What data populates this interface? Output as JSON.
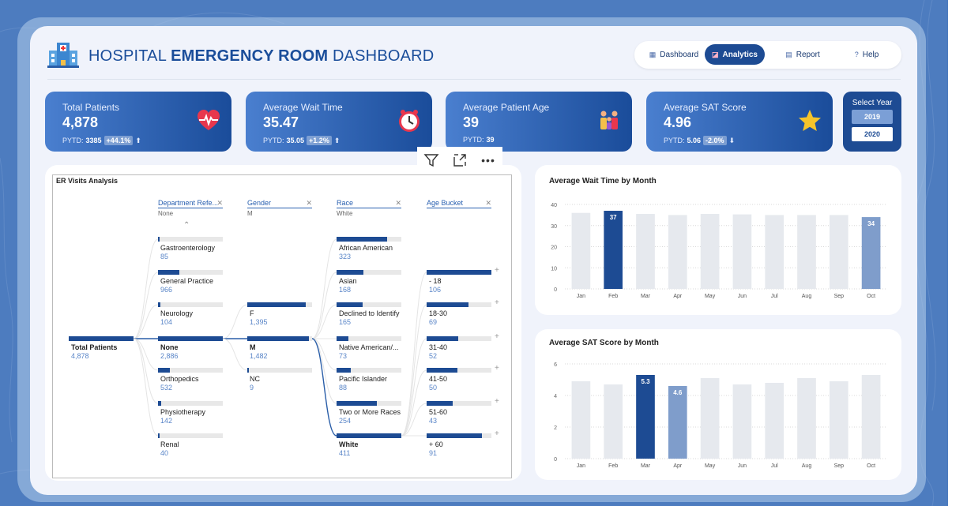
{
  "header": {
    "title_pre": "HOSPITAL",
    "title_bold": "EMERGENCY ROOM",
    "title_post": "DASHBOARD"
  },
  "nav": [
    {
      "label": "Dashboard",
      "icon": "dashboard-icon",
      "active": false
    },
    {
      "label": "Analytics",
      "icon": "analytics-icon",
      "active": true
    },
    {
      "label": "Report",
      "icon": "report-icon",
      "active": false
    },
    {
      "label": "Help",
      "icon": "help-icon",
      "active": false
    }
  ],
  "kpis": [
    {
      "label": "Total Patients",
      "value": "4,878",
      "pytd_label": "PYTD:",
      "pytd": "3385",
      "change": "+44.1%",
      "dir": "up",
      "icon": "heart-icon"
    },
    {
      "label": "Average Wait Time",
      "value": "35.47",
      "pytd_label": "PYTD:",
      "pytd": "35.05",
      "change": "+1.2%",
      "dir": "up",
      "icon": "clock-icon"
    },
    {
      "label": "Average Patient Age",
      "value": "39",
      "pytd_label": "PYTD:",
      "pytd": "39",
      "change": "",
      "dir": "",
      "icon": "family-icon"
    },
    {
      "label": "Average SAT Score",
      "value": "4.96",
      "pytd_label": "PYTD:",
      "pytd": "5.06",
      "change": "-2.0%",
      "dir": "down",
      "icon": "star-icon"
    }
  ],
  "year_select": {
    "label": "Select Year",
    "options": [
      "2019",
      "2020"
    ],
    "selected": "2020"
  },
  "decomp": {
    "title": "ER Visits Analysis",
    "root": {
      "label": "Total Patients",
      "value": "4,878"
    },
    "columns": [
      {
        "header": "Department Refe...",
        "sub": "None"
      },
      {
        "header": "Gender",
        "sub": "M"
      },
      {
        "header": "Race",
        "sub": "White"
      },
      {
        "header": "Age Bucket",
        "sub": ""
      }
    ],
    "departments": [
      {
        "label": "Gastroenterology",
        "value": "85",
        "n": 85
      },
      {
        "label": "General Practice",
        "value": "966",
        "n": 966
      },
      {
        "label": "Neurology",
        "value": "104",
        "n": 104
      },
      {
        "label": "None",
        "value": "2,886",
        "n": 2886,
        "selected": true
      },
      {
        "label": "Orthopedics",
        "value": "532",
        "n": 532
      },
      {
        "label": "Physiotherapy",
        "value": "142",
        "n": 142
      },
      {
        "label": "Renal",
        "value": "40",
        "n": 40
      }
    ],
    "genders": [
      {
        "label": "F",
        "value": "1,395",
        "n": 1395
      },
      {
        "label": "M",
        "value": "1,482",
        "n": 1482,
        "selected": true
      },
      {
        "label": "NC",
        "value": "9",
        "n": 9
      }
    ],
    "races": [
      {
        "label": "African American",
        "value": "323",
        "n": 323
      },
      {
        "label": "Asian",
        "value": "168",
        "n": 168
      },
      {
        "label": "Declined to Identify",
        "value": "165",
        "n": 165
      },
      {
        "label": "Native American/...",
        "value": "73",
        "n": 73
      },
      {
        "label": "Pacific Islander",
        "value": "88",
        "n": 88
      },
      {
        "label": "Two or More Races",
        "value": "254",
        "n": 254
      },
      {
        "label": "White",
        "value": "411",
        "n": 411,
        "selected": true
      }
    ],
    "ages": [
      {
        "label": "- 18",
        "value": "106",
        "n": 106
      },
      {
        "label": "18-30",
        "value": "69",
        "n": 69
      },
      {
        "label": "31-40",
        "value": "52",
        "n": 52
      },
      {
        "label": "41-50",
        "value": "50",
        "n": 50
      },
      {
        "label": "51-60",
        "value": "43",
        "n": 43
      },
      {
        "label": "+ 60",
        "value": "91",
        "n": 91
      }
    ]
  },
  "chart_data": [
    {
      "type": "bar",
      "title": "Average Wait Time by Month",
      "categories": [
        "Jan",
        "Feb",
        "Mar",
        "Apr",
        "May",
        "Jun",
        "Jul",
        "Aug",
        "Sep",
        "Oct"
      ],
      "values": [
        36,
        37,
        35.5,
        35,
        35.5,
        35.3,
        35,
        35,
        35,
        34
      ],
      "highlight": {
        "max_index": 1,
        "min_index": 9
      },
      "data_labels": {
        "1": "37",
        "9": "34"
      },
      "yticks": [
        0,
        10,
        20,
        30,
        40
      ],
      "ylim": [
        0,
        40
      ],
      "colors": {
        "bar": "#e6e9ee",
        "max": "#1d4b93",
        "min": "#7f9dcb"
      },
      "grid": true
    },
    {
      "type": "bar",
      "title": "Average SAT Score by Month",
      "categories": [
        "Jan",
        "Feb",
        "Mar",
        "Apr",
        "May",
        "Jun",
        "Jul",
        "Aug",
        "Sep",
        "Oct"
      ],
      "values": [
        4.9,
        4.7,
        5.3,
        4.6,
        5.1,
        4.7,
        4.8,
        5.1,
        4.9,
        5.3
      ],
      "highlight": {
        "max_index": 2,
        "min_index": 3
      },
      "data_labels": {
        "2": "5.3",
        "3": "4.6"
      },
      "yticks": [
        0,
        2,
        4,
        6
      ],
      "ylim": [
        0,
        6
      ],
      "colors": {
        "bar": "#e6e9ee",
        "max": "#1d4b93",
        "min": "#7f9dcb"
      },
      "grid": true
    }
  ]
}
